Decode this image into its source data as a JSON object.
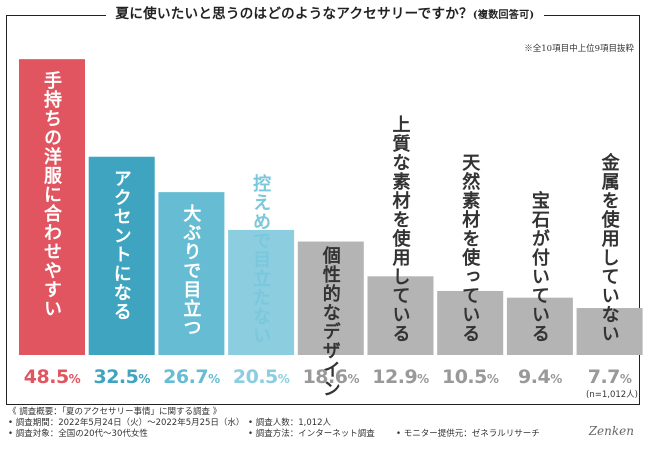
{
  "header": {
    "title_main": "夏に使いたいと思うのはどのようなアクセサリーですか？",
    "title_note": "(複数回答可)",
    "subnote": "※全10項目中上位9項目抜粋"
  },
  "chart_data": {
    "type": "bar",
    "title": "夏に使いたいと思うのはどのようなアクセサリーですか？(複数回答可)",
    "categories": [
      "手持ちの洋服に合わせやすい",
      "アクセントになる",
      "大ぶりで目立つ",
      "控えめで目立たない",
      "個性的なデザイン",
      "上質な素材を使用している",
      "天然素材を使っている",
      "宝石が付いている",
      "金属を使用していない"
    ],
    "values": [
      48.5,
      32.5,
      26.7,
      20.5,
      18.6,
      12.9,
      10.5,
      9.4,
      7.7
    ],
    "value_labels": [
      "48.5",
      "32.5",
      "26.7",
      "20.5",
      "18.6",
      "12.9",
      "10.5",
      "9.4",
      "7.7"
    ],
    "unit": "%",
    "colors": [
      "#e05560",
      "#3fa4bf",
      "#66bcd3",
      "#8ccde0",
      "#b4b4b4",
      "#b4b4b4",
      "#b4b4b4",
      "#b4b4b4",
      "#b4b4b4"
    ],
    "value_colors": [
      "#e05560",
      "#3fa4bf",
      "#66bcd3",
      "#8ccde0",
      "#999999",
      "#999999",
      "#999999",
      "#999999",
      "#999999"
    ],
    "ylim": [
      0,
      50
    ],
    "xlabel": "",
    "ylabel": ""
  },
  "sample_size": "(n=1,012人)",
  "footer": {
    "overview": "《 調査概要：「夏のアクセサリー事情」に関する調査 》",
    "period": "• 調査期間：2022年5月24日（火）〜2022年5月25日（水）",
    "count": "• 調査人数：1,012人",
    "target": "• 調査対象：全国の20代〜30代女性",
    "method": "• 調査方法：インターネット調査",
    "provider": "• モニター提供元：ゼネラルリサーチ"
  },
  "logo_text": "Zenken"
}
